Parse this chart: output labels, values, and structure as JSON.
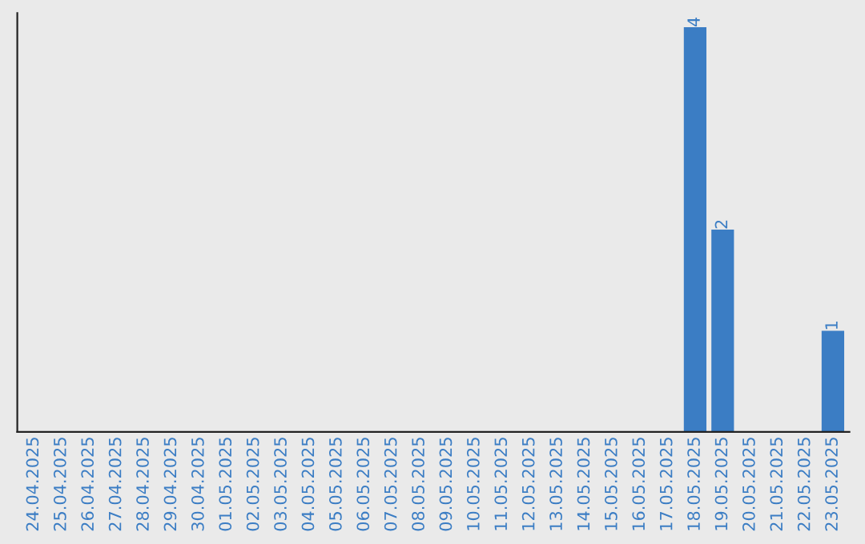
{
  "chart_data": {
    "type": "bar",
    "categories": [
      "24.04.2025",
      "25.04.2025",
      "26.04.2025",
      "27.04.2025",
      "28.04.2025",
      "29.04.2025",
      "30.04.2025",
      "01.05.2025",
      "02.05.2025",
      "03.05.2025",
      "04.05.2025",
      "05.05.2025",
      "06.05.2025",
      "07.05.2025",
      "08.05.2025",
      "09.05.2025",
      "10.05.2025",
      "11.05.2025",
      "12.05.2025",
      "13.05.2025",
      "14.05.2025",
      "15.05.2025",
      "16.05.2025",
      "17.05.2025",
      "18.05.2025",
      "19.05.2025",
      "20.05.2025",
      "21.05.2025",
      "22.05.2025",
      "23.05.2025"
    ],
    "values": [
      null,
      null,
      null,
      null,
      null,
      null,
      null,
      null,
      null,
      null,
      null,
      null,
      null,
      null,
      null,
      null,
      null,
      null,
      null,
      null,
      null,
      null,
      null,
      null,
      4,
      2,
      null,
      null,
      null,
      1
    ],
    "value_labels": [
      null,
      null,
      null,
      null,
      null,
      null,
      null,
      null,
      null,
      null,
      null,
      null,
      null,
      null,
      null,
      null,
      null,
      null,
      null,
      null,
      null,
      null,
      null,
      null,
      "4",
      "2",
      null,
      null,
      null,
      "1"
    ],
    "color": "#3b7dc4",
    "tick_labels": "x",
    "grid": false
  }
}
